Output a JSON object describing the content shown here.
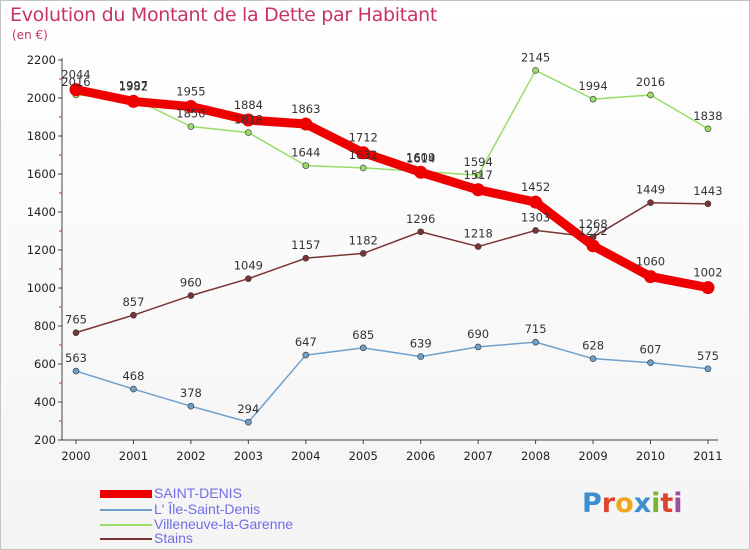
{
  "title": "Evolution du Montant de la Dette par Habitant",
  "subtitle": "(en €)",
  "logo": {
    "text": "Proxiti",
    "colors": [
      "#3d8fd0",
      "#e0452f",
      "#f2a51d",
      "#3d8fd0",
      "#76b52d",
      "#e0452f",
      "#9c4da0"
    ]
  },
  "chart_data": {
    "type": "line",
    "x": [
      "2000",
      "2001",
      "2002",
      "2003",
      "2004",
      "2005",
      "2006",
      "2007",
      "2008",
      "2009",
      "2010",
      "2011"
    ],
    "ylim": [
      200,
      2200
    ],
    "yticks": [
      "200",
      "400",
      "600",
      "800",
      "1000",
      "1200",
      "1400",
      "1600",
      "1800",
      "2000",
      "2200"
    ],
    "grid": false,
    "legend_position": "bottom-left",
    "series": [
      {
        "name": "SAINT-DENIS",
        "color": "#ee0000",
        "values": [
          2044,
          1982,
          1955,
          1884,
          1863,
          1712,
          1609,
          1517,
          1452,
          1222,
          1060,
          1002
        ],
        "labels": [
          "2044",
          "1982",
          "1955",
          "1884",
          "1863",
          "1712",
          "1609",
          "1517",
          "1452",
          "1222",
          "1060",
          "1002"
        ]
      },
      {
        "name": "L' Île-Saint-Denis",
        "color": "#6ea0cc",
        "values": [
          563,
          468,
          378,
          294,
          647,
          685,
          639,
          690,
          715,
          628,
          607,
          575
        ],
        "labels": [
          "563",
          "468",
          "378",
          "294",
          "647",
          "685",
          "639",
          "690",
          "715",
          "628",
          "607",
          "575"
        ]
      },
      {
        "name": "Villeneuve-la-Garenne",
        "color": "#99dd66",
        "values": [
          2016,
          1997,
          1850,
          1818,
          1644,
          1632,
          1614,
          1594,
          2145,
          1994,
          2016,
          1838
        ],
        "labels": [
          "2016",
          "1997",
          "1850",
          "1818",
          "1644",
          "1632",
          "1614",
          "1594",
          "2145",
          "1994",
          "2016",
          "1838"
        ]
      },
      {
        "name": "Stains",
        "color": "#7a3434",
        "values": [
          765,
          857,
          960,
          1049,
          1157,
          1182,
          1296,
          1218,
          1303,
          1268,
          1449,
          1443
        ],
        "labels": [
          "765",
          "857",
          "960",
          "1049",
          "1157",
          "1182",
          "1296",
          "1218",
          "1303",
          "1268",
          "1449",
          "1443"
        ]
      }
    ]
  }
}
